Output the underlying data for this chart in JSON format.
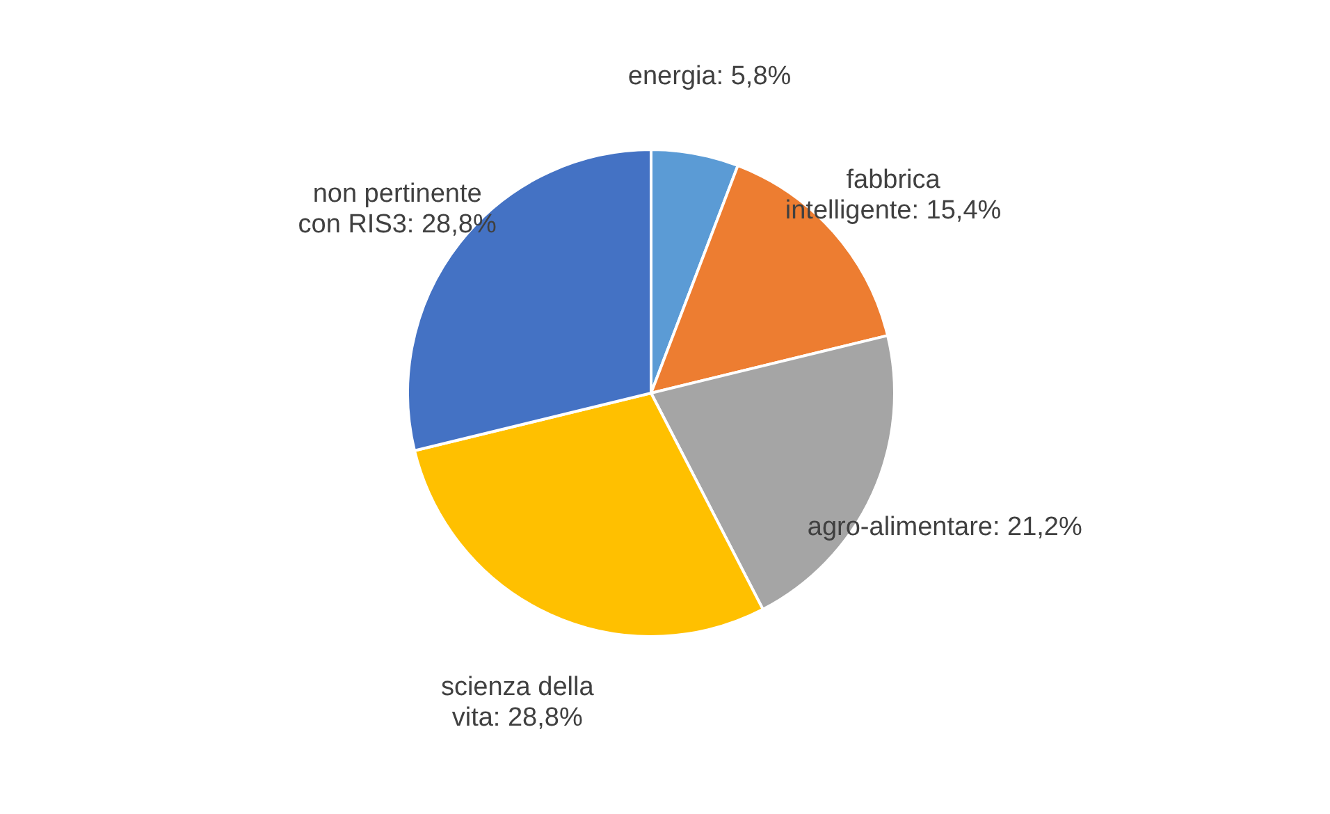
{
  "chart_data": {
    "type": "pie",
    "categories": [
      "energia",
      "fabbrica intelligente",
      "agro-alimentare",
      "scienza della vita",
      "non pertinente con RIS3"
    ],
    "values": [
      5.8,
      15.4,
      21.2,
      28.8,
      28.8
    ],
    "colors": [
      "#5b9bd5",
      "#ed7d31",
      "#a5a5a5",
      "#ffc000",
      "#4472c4"
    ],
    "value_labels": [
      "5,8%",
      "15,4%",
      "21,2%",
      "28,8%",
      "28,8%"
    ],
    "legend": false
  }
}
